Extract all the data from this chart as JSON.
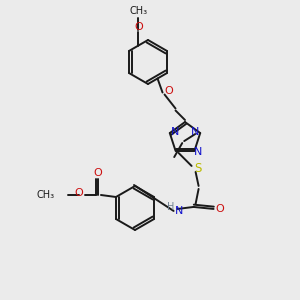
{
  "background_color": "#ebebeb",
  "bond_color": "#1a1a1a",
  "colors": {
    "N": "#1010cc",
    "O": "#cc1010",
    "S": "#bbbb00",
    "H": "#708090",
    "C": "#1a1a1a"
  },
  "figsize": [
    3.0,
    3.0
  ],
  "dpi": 100
}
